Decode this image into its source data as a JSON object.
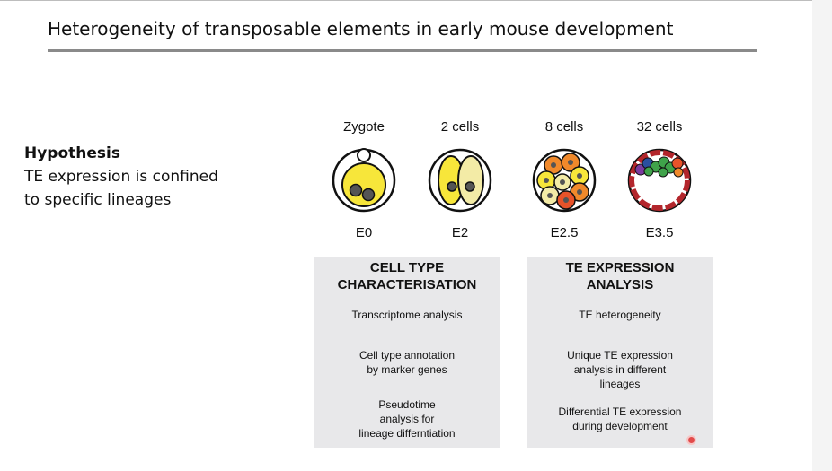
{
  "slide": {
    "title": "Heterogeneity of transposable elements in early mouse development"
  },
  "hypothesis": {
    "heading": "Hypothesis",
    "lines": [
      "TE expression is confined",
      "to specific lineages"
    ]
  },
  "stages": [
    {
      "label": "Zygote",
      "day": "E0"
    },
    {
      "label": "2 cells",
      "day": "E2"
    },
    {
      "label": "8 cells",
      "day": "E2.5"
    },
    {
      "label": "32 cells",
      "day": "E3.5"
    }
  ],
  "panels": {
    "cell_type": {
      "title_lines": [
        "CELL TYPE",
        "CHARACTERISATION"
      ],
      "items": [
        [
          "Transcriptome analysis"
        ],
        [
          "Cell type annotation",
          "by marker genes"
        ],
        [
          "Pseudotime",
          "analysis for",
          "lineage differntiation"
        ]
      ]
    },
    "te_expression": {
      "title_lines": [
        "TE EXPRESSION",
        "ANALYSIS"
      ],
      "items": [
        [
          "TE heterogeneity"
        ],
        [
          "Unique TE expression",
          "analysis in  different",
          "lineages"
        ],
        [
          "Differential TE expression",
          "during development"
        ]
      ]
    }
  },
  "colors": {
    "yellow": "#f7e63a",
    "pale_yellow": "#f3eba6",
    "orange": "#f0892b",
    "red_orange": "#e8532a",
    "dark_red": "#b3262c",
    "green": "#3fa34a",
    "blue": "#2a4fa0",
    "purple": "#7b3aa0",
    "panel_bg": "#e8e8ea"
  }
}
